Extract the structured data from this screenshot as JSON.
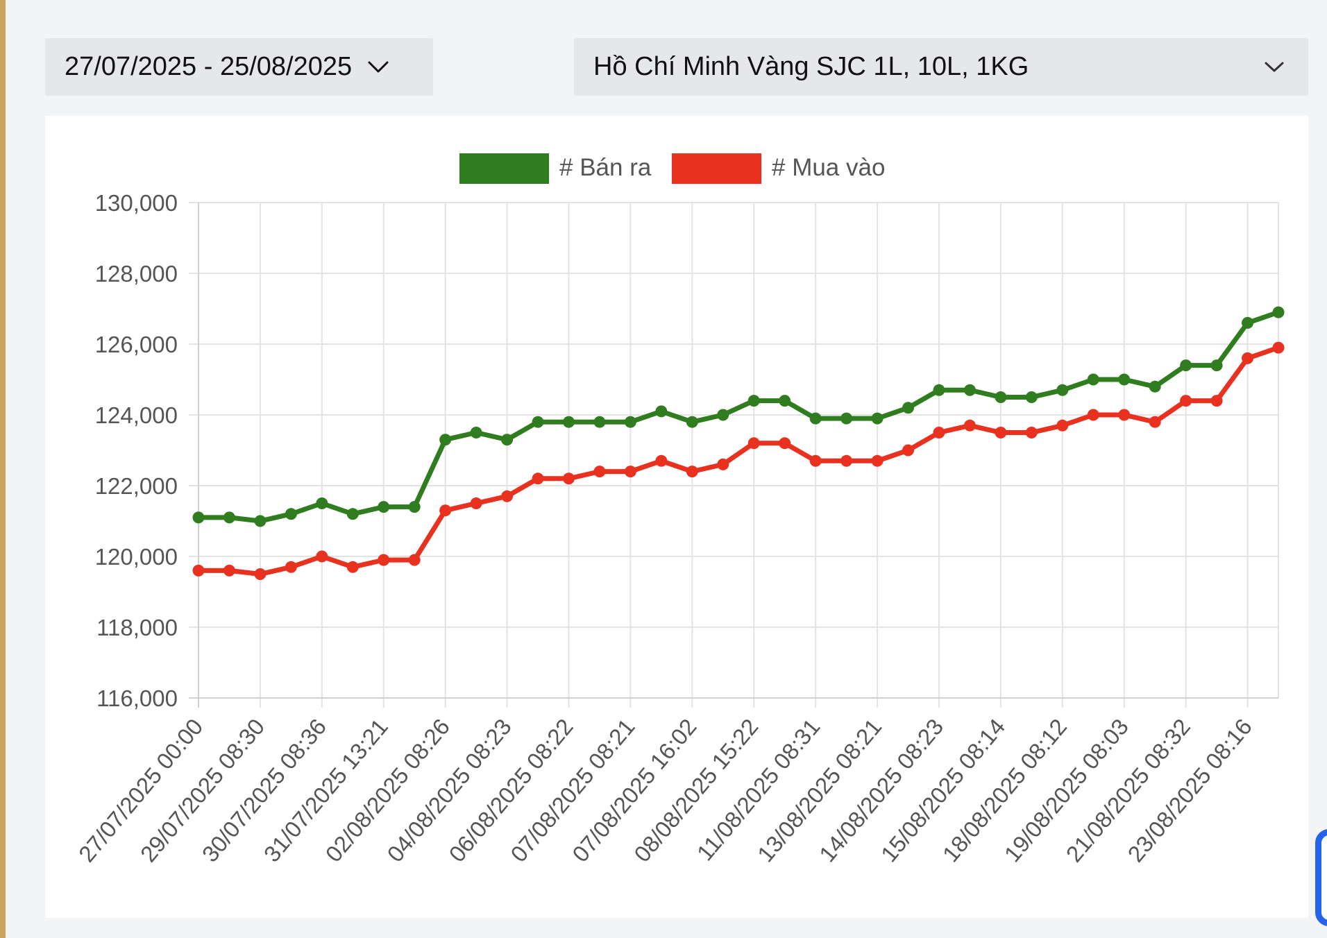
{
  "filters": {
    "date_range": "27/07/2025 - 25/08/2025",
    "location": "Hồ Chí Minh Vàng SJC 1L, 10L, 1KG"
  },
  "icons": {
    "date_dropdown": "chevron-down-icon",
    "location_dropdown": "chevron-down-icon"
  },
  "colors": {
    "ban_ra": "#2f7d1e",
    "mua_vao": "#e8321f",
    "grid": "#e3e3e3",
    "text": "#555555"
  },
  "chart_data": {
    "type": "line",
    "title": "",
    "xlabel": "",
    "ylabel": "",
    "ylim": [
      116000,
      130000
    ],
    "yticks": [
      "130,000",
      "128,000",
      "126,000",
      "124,000",
      "122,000",
      "120,000",
      "118,000",
      "116,000"
    ],
    "yticks_values": [
      130000,
      128000,
      126000,
      124000,
      122000,
      120000,
      118000,
      116000
    ],
    "x_tick_labels": [
      "27/07/2025 00:00",
      "29/07/2025 08:30",
      "30/07/2025 08:36",
      "31/07/2025 13:21",
      "02/08/2025 08:26",
      "04/08/2025 08:23",
      "06/08/2025 08:22",
      "07/08/2025 08:21",
      "07/08/2025 16:02",
      "08/08/2025 15:22",
      "11/08/2025 08:31",
      "13/08/2025 08:21",
      "14/08/2025 08:23",
      "15/08/2025 08:14",
      "18/08/2025 08:12",
      "19/08/2025 08:03",
      "21/08/2025 08:32",
      "23/08/2025 08:16"
    ],
    "num_points": 36,
    "legend_position": "top-center",
    "grid": true,
    "series": [
      {
        "name": "# Bán ra",
        "values": [
          121100,
          121100,
          121000,
          121200,
          121500,
          121200,
          121400,
          121400,
          123300,
          123500,
          123300,
          123800,
          123800,
          123800,
          123800,
          124100,
          123800,
          124000,
          124400,
          124400,
          123900,
          123900,
          123900,
          124200,
          124700,
          124700,
          124500,
          124500,
          124700,
          125000,
          125000,
          124800,
          125400,
          125400,
          126600,
          126900
        ]
      },
      {
        "name": "# Mua vào",
        "values": [
          119600,
          119600,
          119500,
          119700,
          120000,
          119700,
          119900,
          119900,
          121300,
          121500,
          121700,
          122200,
          122200,
          122400,
          122400,
          122700,
          122400,
          122600,
          123200,
          123200,
          122700,
          122700,
          122700,
          123000,
          123500,
          123700,
          123500,
          123500,
          123700,
          124000,
          124000,
          123800,
          124400,
          124400,
          125600,
          125900
        ]
      }
    ]
  }
}
